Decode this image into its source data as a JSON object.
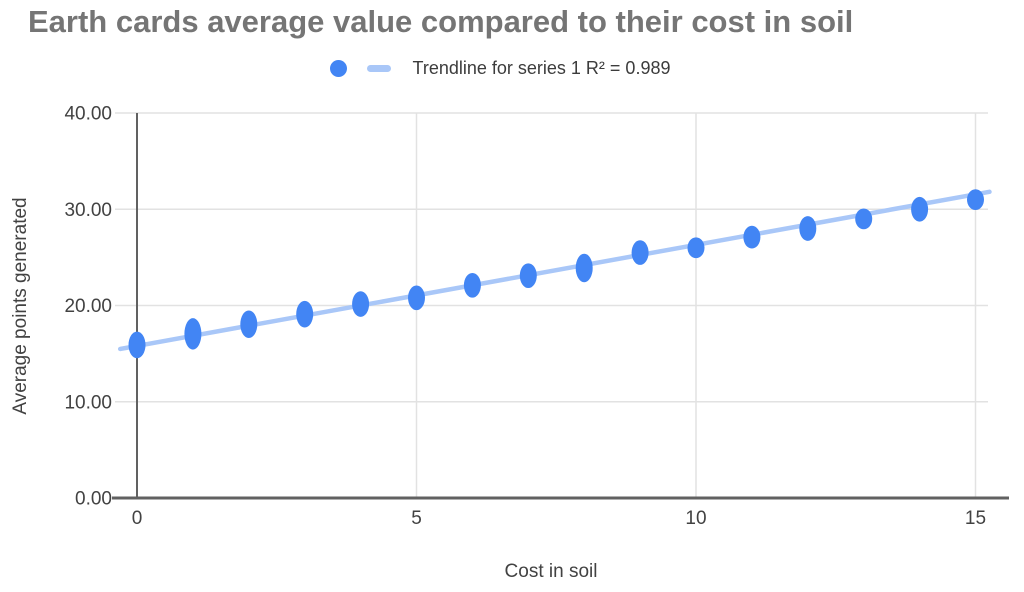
{
  "title": "Earth cards average value compared to their cost in soil",
  "legend": {
    "series_marker": "scatter-point",
    "trendline_marker": "trendline-dash",
    "label": "Trendline for series 1 R² = 0.989"
  },
  "axes": {
    "x_title": "Cost in soil",
    "y_title": "Average points generated"
  },
  "colors": {
    "point": "#4285f4",
    "trendline": "#a9c7f8",
    "grid": "#e2e2e2",
    "axis": "#616161",
    "title": "#757575",
    "tick_text": "#424242",
    "legend_text": "#3c3c3c"
  },
  "chart_data": {
    "type": "scatter",
    "title": "Earth cards average value compared to their cost in soil",
    "xlabel": "Cost in soil",
    "ylabel": "Average points generated",
    "xlim": [
      0,
      15
    ],
    "ylim": [
      0,
      40
    ],
    "x_ticks": [
      0,
      5,
      10,
      15
    ],
    "y_ticks": [
      0,
      10,
      20,
      30,
      40
    ],
    "y_tick_decimals": 2,
    "grid": true,
    "legend_position": "top",
    "series": [
      {
        "name": "series 1",
        "clusters": [
          {
            "x": 0,
            "y_values": [
              15.4,
              16.4
            ]
          },
          {
            "x": 1,
            "y_values": [
              16.3,
              17.0,
              17.8
            ]
          },
          {
            "x": 2,
            "y_values": [
              17.5,
              18.6
            ]
          },
          {
            "x": 3,
            "y_values": [
              18.6,
              19.6
            ]
          },
          {
            "x": 4,
            "y_values": [
              19.7,
              20.6
            ]
          },
          {
            "x": 5,
            "y_values": [
              20.4,
              21.2
            ]
          },
          {
            "x": 6,
            "y_values": [
              21.7,
              22.5
            ]
          },
          {
            "x": 7,
            "y_values": [
              22.7,
              23.5
            ]
          },
          {
            "x": 8,
            "y_values": [
              23.3,
              23.9,
              24.5
            ]
          },
          {
            "x": 9,
            "y_values": [
              25.1,
              25.9
            ]
          },
          {
            "x": 10,
            "y_values": [
              25.8,
              26.2
            ]
          },
          {
            "x": 11,
            "y_values": [
              26.8,
              27.4
            ]
          },
          {
            "x": 12,
            "y_values": [
              27.6,
              28.4
            ]
          },
          {
            "x": 13,
            "y_values": [
              28.8,
              29.2
            ]
          },
          {
            "x": 14,
            "y_values": [
              29.6,
              30.4
            ]
          },
          {
            "x": 15,
            "y_values": [
              30.8,
              31.2
            ]
          }
        ]
      }
    ],
    "trendline": {
      "slope": 1.05,
      "intercept": 15.8,
      "r_squared": 0.989,
      "x_start": -0.3,
      "x_end": 15.25
    }
  }
}
